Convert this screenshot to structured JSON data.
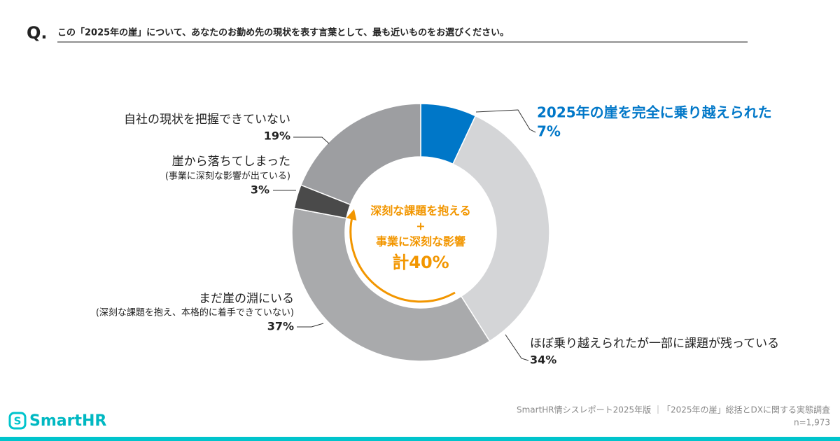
{
  "question_mark": "Q.",
  "question": "この「2025年の崖」について、あなたのお勤め先の現状を表す言葉として、最も近いものをお選びください。",
  "chart_data": {
    "type": "donut",
    "categories": [
      "2025年の崖を完全に乗り越えられた",
      "ほぼ乗り越えられたが一部に課題が残っている",
      "まだ崖の淵にいる",
      "崖から落ちてしまった",
      "自社の現状を把握できていない"
    ],
    "sublabels": [
      null,
      null,
      "(深刻な課題を抱え、本格的に着手できていない)",
      "(事業に深刻な影響が出ている)",
      null
    ],
    "values": [
      7,
      34,
      37,
      3,
      19
    ],
    "value_labels": [
      "7%",
      "34%",
      "37%",
      "3%",
      "19%"
    ],
    "colors": [
      "#0077c8",
      "#d4d5d7",
      "#a9aaac",
      "#4a4a4a",
      "#9d9ea1"
    ],
    "center_annotation": [
      "深刻な課題を抱える",
      "+",
      "事業に深刻な影響",
      "計40%"
    ]
  },
  "footer": {
    "logo": "SmartHR",
    "source": "SmartHR情シスレポート2025年版 ｜「2025年の崖」総括とDXに関する実態調査",
    "sample": "n=1,973"
  }
}
